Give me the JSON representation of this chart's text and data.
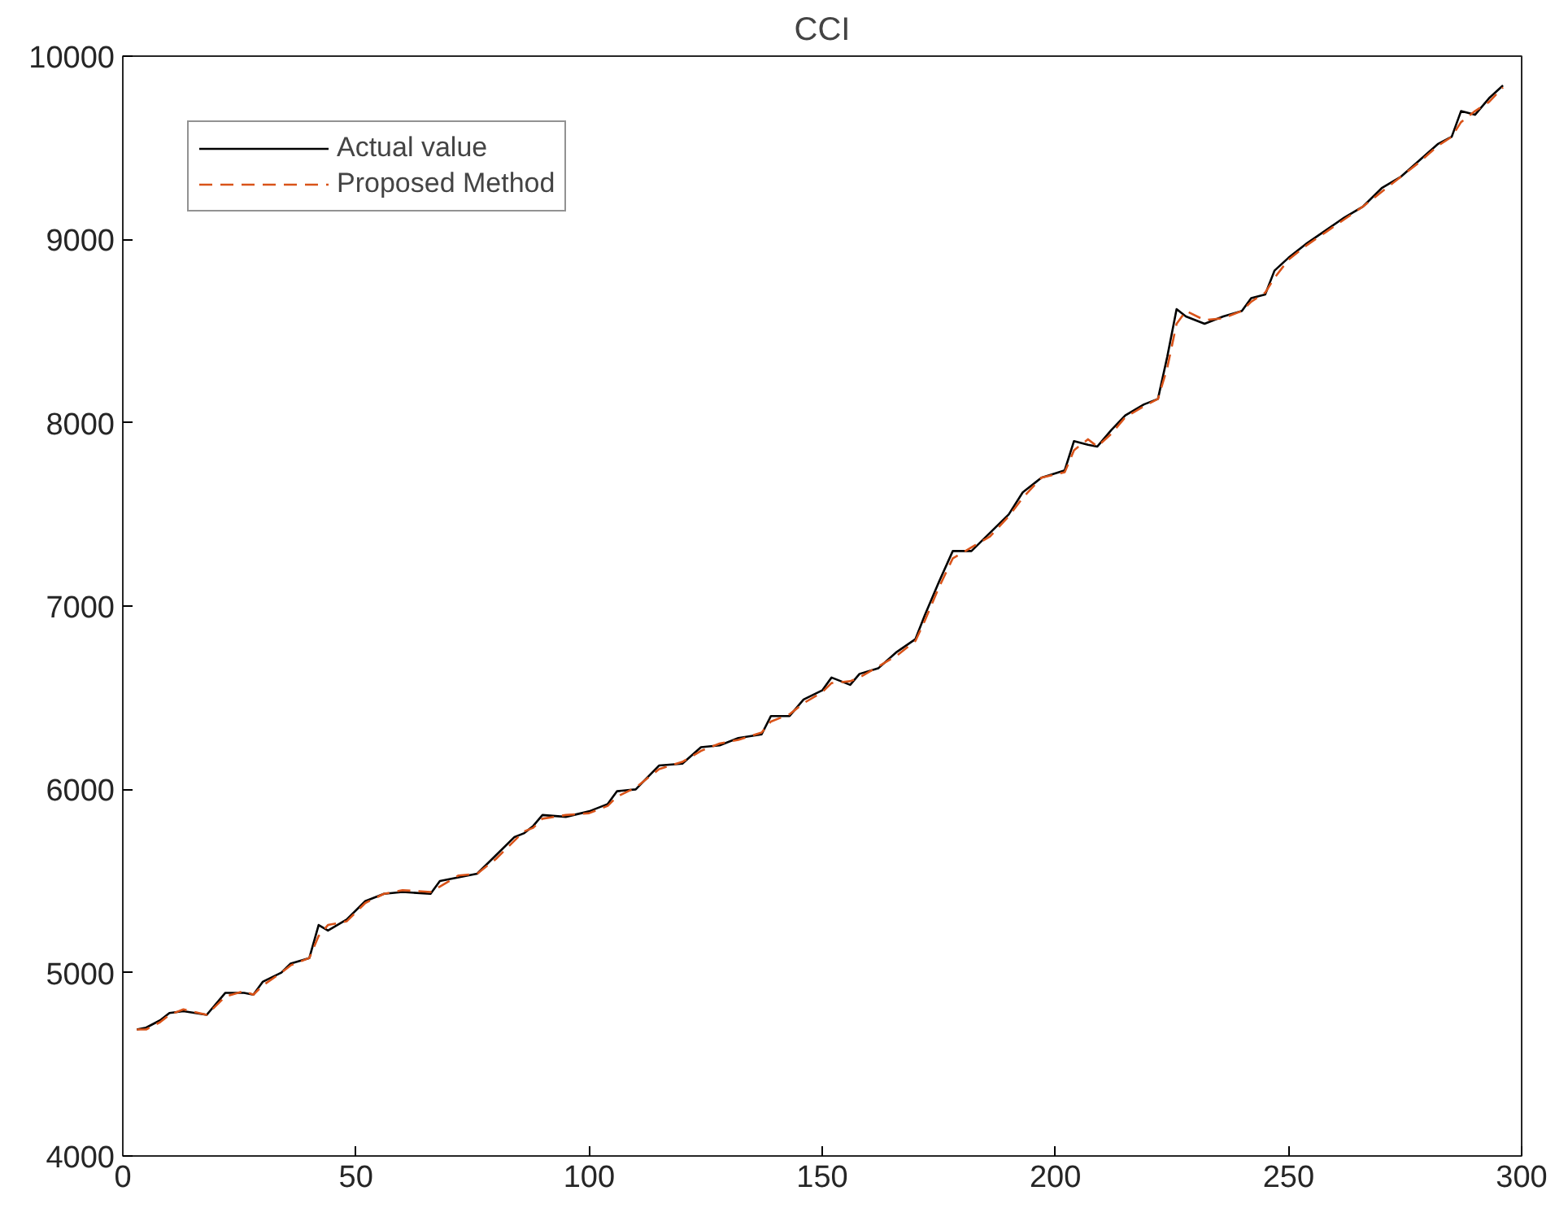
{
  "chart_data": {
    "type": "line",
    "title": "CCI",
    "x": [
      3,
      5,
      8,
      10,
      13,
      18,
      22,
      26,
      28,
      30,
      34,
      36,
      40,
      42,
      44,
      48,
      52,
      56,
      60,
      66,
      68,
      72,
      76,
      80,
      84,
      86,
      88,
      90,
      95,
      100,
      104,
      106,
      110,
      115,
      120,
      124,
      128,
      132,
      137,
      139,
      143,
      146,
      150,
      152,
      156,
      158,
      162,
      166,
      170,
      172,
      175,
      178,
      182,
      186,
      190,
      193,
      197,
      202,
      204,
      207,
      209,
      212,
      215,
      219,
      222,
      224,
      226,
      228,
      232,
      236,
      240,
      242,
      245,
      247,
      250,
      254,
      258,
      262,
      266,
      270,
      274,
      278,
      282,
      285,
      287,
      290,
      293,
      296
    ],
    "series": [
      {
        "name": "Actual value",
        "color": "#000000",
        "line_style": "solid",
        "values": [
          4690,
          4700,
          4740,
          4780,
          4790,
          4770,
          4890,
          4890,
          4880,
          4950,
          5000,
          5050,
          5080,
          5260,
          5230,
          5290,
          5390,
          5430,
          5440,
          5430,
          5500,
          5520,
          5540,
          5640,
          5740,
          5760,
          5800,
          5860,
          5850,
          5880,
          5920,
          5990,
          6000,
          6130,
          6140,
          6230,
          6240,
          6280,
          6300,
          6400,
          6400,
          6490,
          6540,
          6610,
          6570,
          6630,
          6660,
          6750,
          6820,
          6950,
          7130,
          7300,
          7300,
          7400,
          7500,
          7620,
          7700,
          7740,
          7900,
          7880,
          7870,
          7960,
          8040,
          8100,
          8130,
          8360,
          8620,
          8580,
          8540,
          8580,
          8610,
          8680,
          8700,
          8830,
          8900,
          8980,
          9050,
          9120,
          9180,
          9280,
          9340,
          9430,
          9520,
          9560,
          9700,
          9680,
          9770,
          9840
        ]
      },
      {
        "name": "Proposed Method",
        "color": "#d95319",
        "line_style": "dashed",
        "values": [
          4690,
          4690,
          4730,
          4770,
          4800,
          4770,
          4870,
          4900,
          4880,
          4930,
          5000,
          5040,
          5080,
          5200,
          5260,
          5280,
          5380,
          5430,
          5450,
          5440,
          5470,
          5530,
          5540,
          5620,
          5720,
          5770,
          5790,
          5840,
          5860,
          5870,
          5910,
          5960,
          6010,
          6110,
          6150,
          6210,
          6250,
          6270,
          6310,
          6370,
          6410,
          6470,
          6530,
          6580,
          6590,
          6610,
          6670,
          6730,
          6810,
          6920,
          7100,
          7260,
          7320,
          7380,
          7490,
          7590,
          7700,
          7730,
          7850,
          7910,
          7870,
          7940,
          8030,
          8090,
          8130,
          8300,
          8540,
          8610,
          8560,
          8570,
          8610,
          8660,
          8710,
          8790,
          8890,
          8970,
          9040,
          9110,
          9180,
          9260,
          9340,
          9420,
          9510,
          9560,
          9640,
          9700,
          9750,
          9830
        ]
      }
    ],
    "xlim": [
      0,
      300
    ],
    "xticks": [
      0,
      50,
      100,
      150,
      200,
      250,
      300
    ],
    "ylim": [
      4000,
      10000
    ],
    "yticks": [
      4000,
      5000,
      6000,
      7000,
      8000,
      9000,
      10000
    ],
    "grid": false,
    "legend": "top left"
  }
}
